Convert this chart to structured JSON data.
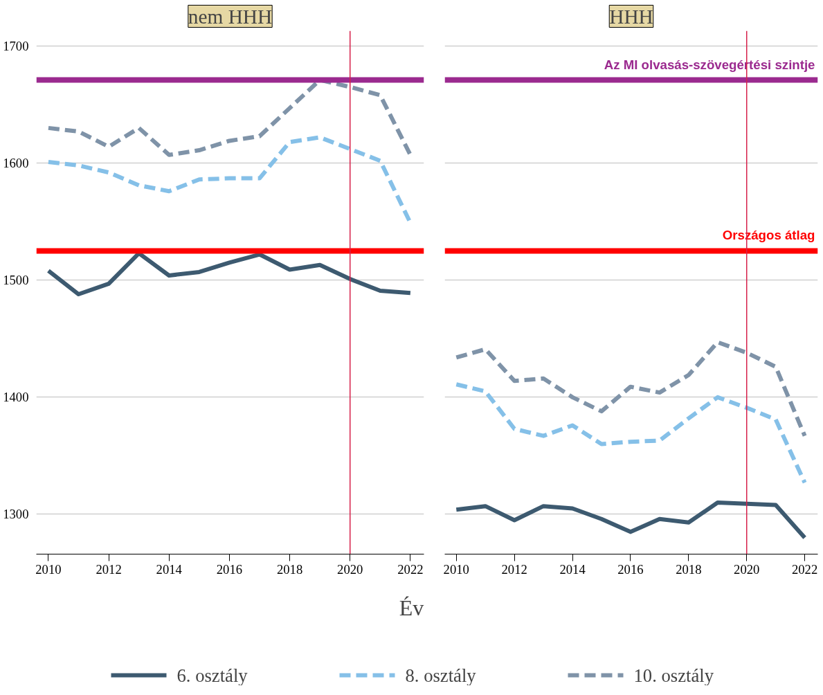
{
  "chart_data": [
    {
      "type": "line",
      "title": "nem HHH",
      "x": [
        2010,
        2011,
        2012,
        2013,
        2014,
        2015,
        2016,
        2017,
        2018,
        2019,
        2020,
        2021,
        2022
      ],
      "series": [
        {
          "name": "6. osztály",
          "color": "#3d5a70",
          "line_style": "solid",
          "values": [
            1508,
            1488,
            1497,
            1523,
            1504,
            1507,
            1515,
            1522,
            1509,
            1513,
            1501,
            1491,
            1489
          ]
        },
        {
          "name": "8. osztály",
          "color": "#85c0e8",
          "line_style": "dashed",
          "values": [
            1601,
            1598,
            1592,
            1581,
            1576,
            1586,
            1587,
            1587,
            1618,
            1622,
            1612,
            1602,
            1549
          ]
        },
        {
          "name": "10. osztály",
          "color": "#7f93a8",
          "line_style": "dashed",
          "values": [
            1630,
            1627,
            1614,
            1630,
            1607,
            1611,
            1619,
            1623,
            1647,
            1671,
            1665,
            1658,
            1607
          ]
        }
      ],
      "xlim": [
        2009.6,
        2022.45
      ],
      "ylim": [
        1266,
        1713
      ],
      "xticks": [
        2010,
        2012,
        2014,
        2016,
        2018,
        2020,
        2022
      ],
      "yticks": [
        1300,
        1400,
        1500,
        1600,
        1700
      ],
      "grid": "y",
      "legend": "bottom",
      "ref_lines": [
        {
          "axis": "y",
          "value": 1671,
          "color": "#9b2a8f"
        },
        {
          "axis": "y",
          "value": 1525,
          "color": "#ff0000"
        },
        {
          "axis": "x",
          "value": 2020,
          "color": "#d6204a"
        }
      ]
    },
    {
      "type": "line",
      "title": "HHH",
      "xlabel": "Év",
      "x": [
        2010,
        2011,
        2012,
        2013,
        2014,
        2015,
        2016,
        2017,
        2018,
        2019,
        2020,
        2021,
        2022
      ],
      "series": [
        {
          "color": "#3d5a70",
          "line_style": "solid",
          "values": [
            1304,
            1307,
            1295,
            1307,
            1305,
            1296,
            1285,
            1296,
            1293,
            1310,
            1309,
            1308,
            1280
          ]
        },
        {
          "color": "#85c0e8",
          "line_style": "dashed",
          "values": [
            1411,
            1405,
            1373,
            1367,
            1376,
            1360,
            1362,
            1363,
            1382,
            1400,
            1391,
            1381,
            1327
          ]
        },
        {
          "color": "#7f93a8",
          "line_style": "dashed",
          "values": [
            1434,
            1441,
            1414,
            1416,
            1400,
            1388,
            1409,
            1404,
            1419,
            1447,
            1438,
            1426,
            1367
          ]
        }
      ],
      "xlim": [
        2009.6,
        2022.45
      ],
      "ylim": [
        1266,
        1713
      ],
      "xticks": [
        2010,
        2012,
        2014,
        2016,
        2018,
        2020,
        2022
      ],
      "yticks": [
        1300,
        1400,
        1500,
        1600,
        1700
      ],
      "grid": "y",
      "tick_labels": "x",
      "ref_lines": [
        {
          "axis": "y",
          "value": 1671,
          "color": "#9b2a8f",
          "label": "Az MI olvasás-szövegértési szintje"
        },
        {
          "axis": "y",
          "value": 1525,
          "color": "#ff0000",
          "label": "Országos átlag"
        },
        {
          "axis": "x",
          "value": 2020,
          "color": "#d6204a"
        }
      ]
    }
  ]
}
